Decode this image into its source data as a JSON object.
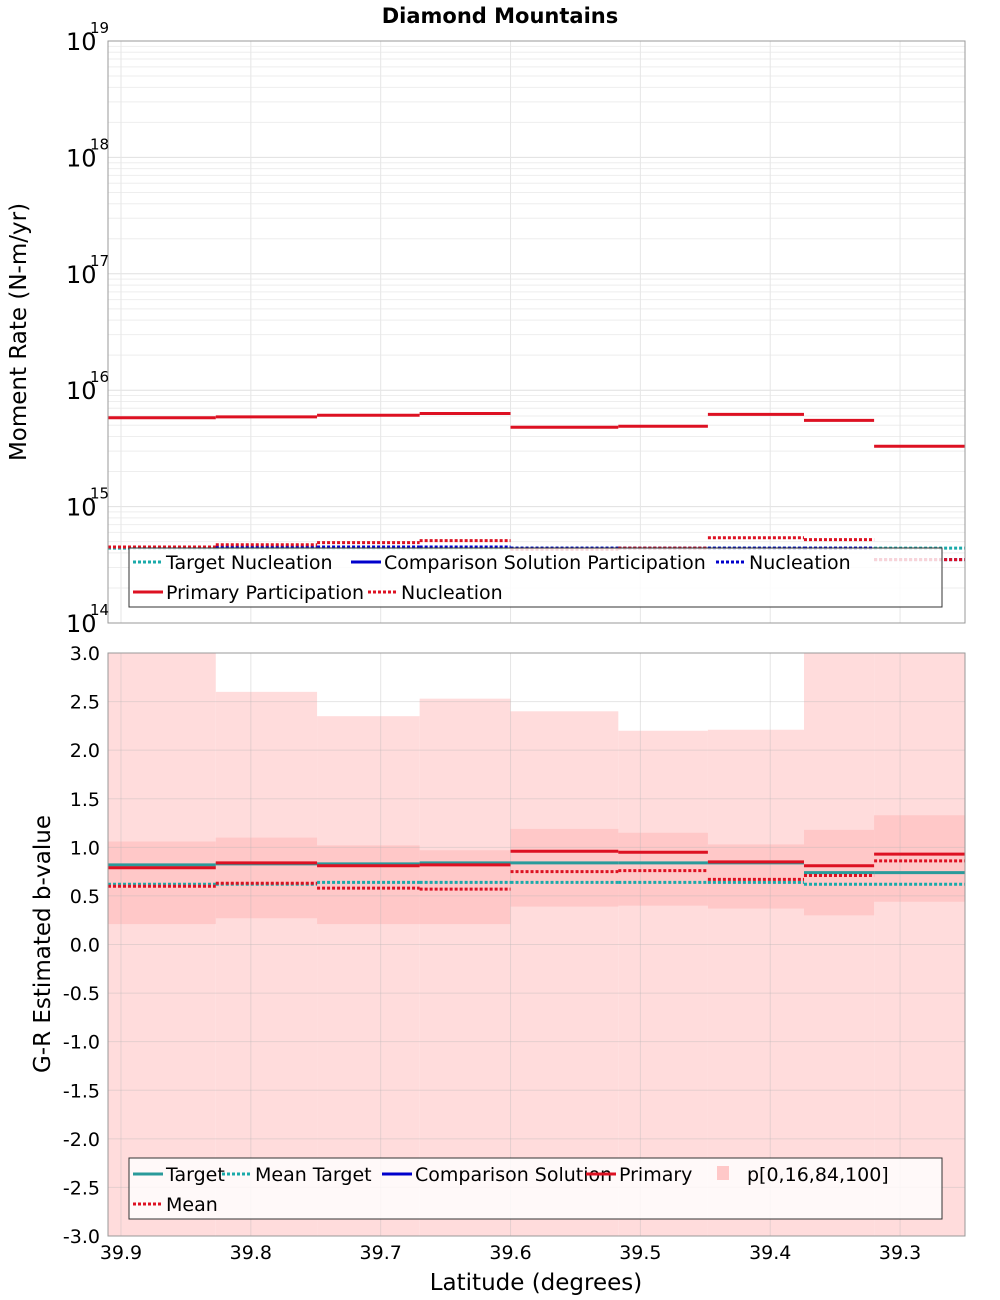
{
  "chart_data": {
    "title": "Diamond Mountains",
    "xlabel": "Latitude (degrees)",
    "x_ticks": [
      "39.9",
      "39.8",
      "39.7",
      "39.6",
      "39.5",
      "39.4",
      "39.3"
    ],
    "x_tick_values": [
      39.9,
      39.8,
      39.7,
      39.6,
      39.5,
      39.4,
      39.3
    ],
    "xlim": [
      39.91,
      39.25
    ],
    "bins": [
      [
        39.91,
        39.827
      ],
      [
        39.827,
        39.749
      ],
      [
        39.749,
        39.67
      ],
      [
        39.67,
        39.6
      ],
      [
        39.6,
        39.517
      ],
      [
        39.517,
        39.448
      ],
      [
        39.448,
        39.374
      ],
      [
        39.374,
        39.32
      ],
      [
        39.32,
        39.25
      ]
    ],
    "charts": [
      {
        "id": "moment-rate",
        "type": "line",
        "scale": "log",
        "ylabel": "Moment Rate (N-m/yr)",
        "ylim": [
          100000000000000.0,
          1e+19
        ],
        "y_tick_base": "10",
        "y_tick_exponents": [
          "14",
          "15",
          "16",
          "17",
          "18",
          "19"
        ],
        "grid": true,
        "legend": {
          "placement": "bottom-left",
          "rows": [
            [
              {
                "label": "Target Nucleation",
                "color": "#1aaaaa",
                "style": "dotted"
              },
              {
                "label": "Comparison Solution Participation",
                "color": "#0000cc",
                "style": "solid"
              },
              {
                "label": "Nucleation",
                "color": "#0000cc",
                "style": "dotted"
              }
            ],
            [
              {
                "label": "Primary Participation",
                "color": "#dd1122",
                "style": "solid"
              },
              {
                "label": "Nucleation",
                "color": "#dd1122",
                "style": "dotted"
              }
            ]
          ]
        },
        "series": [
          {
            "name": "Target Nucleation",
            "color": "#1aaaaa",
            "style": "dotted",
            "values": [
              440000000000000.0,
              440000000000000.0,
              440000000000000.0,
              440000000000000.0,
              440000000000000.0,
              440000000000000.0,
              440000000000000.0,
              440000000000000.0,
              440000000000000.0
            ]
          },
          {
            "name": "Nucleation",
            "color": "#0000cc",
            "style": "dotted",
            "values": [
              450000000000000.0,
              450000000000000.0,
              450000000000000.0,
              450000000000000.0,
              440000000000000.0,
              440000000000000.0,
              440000000000000.0,
              440000000000000.0,
              350000000000000.0
            ]
          },
          {
            "name": "Primary Participation",
            "color": "#dd1122",
            "style": "solid",
            "values": [
              5800000000000000.0,
              5900000000000000.0,
              6100000000000000.0,
              6300000000000000.0,
              4800000000000000.0,
              4900000000000000.0,
              6200000000000000.0,
              5500000000000000.0,
              3300000000000000.0
            ]
          },
          {
            "name": "Nucleation",
            "color": "#dd1122",
            "style": "dotted",
            "values": [
              450000000000000.0,
              470000000000000.0,
              490000000000000.0,
              510000000000000.0,
              430000000000000.0,
              440000000000000.0,
              540000000000000.0,
              520000000000000.0,
              350000000000000.0
            ]
          }
        ]
      },
      {
        "id": "b-value",
        "type": "line",
        "scale": "linear",
        "ylabel": "G-R Estimated b-value",
        "ylim": [
          -3.0,
          3.0
        ],
        "y_ticks": [
          "3.0",
          "2.5",
          "2.0",
          "1.5",
          "1.0",
          "0.5",
          "0.0",
          "-0.5",
          "-1.0",
          "-1.5",
          "-2.0",
          "-2.5",
          "-3.0"
        ],
        "y_tick_values": [
          3.0,
          2.5,
          2.0,
          1.5,
          1.0,
          0.5,
          0.0,
          -0.5,
          -1.0,
          -1.5,
          -2.0,
          -2.5,
          -3.0
        ],
        "grid": true,
        "legend": {
          "placement": "bottom-left",
          "rows": [
            [
              {
                "label": "Target",
                "color": "#2a9a9a",
                "style": "solid"
              },
              {
                "label": "Mean Target",
                "color": "#1aaaaa",
                "style": "dotted"
              },
              {
                "label": "Comparison Solution",
                "color": "#0000cc",
                "style": "solid"
              },
              {
                "label": "Primary",
                "color": "#dd1122",
                "style": "solid"
              },
              {
                "label": "p[0,16,84,100]",
                "color": "#ffc8c8",
                "style": "box"
              }
            ],
            [
              {
                "label": "Mean",
                "color": "#dd1122",
                "style": "dotted"
              }
            ]
          ]
        },
        "band_outer": {
          "name": "p[0,100]",
          "color": "#ffdcdc",
          "lower": [
            -3.0,
            -3.0,
            -3.0,
            -3.0,
            -3.0,
            -3.0,
            -3.0,
            -3.0,
            -3.0
          ],
          "upper": [
            3.0,
            2.6,
            2.35,
            2.53,
            2.4,
            2.2,
            2.21,
            3.0,
            3.0
          ]
        },
        "band_inner": {
          "name": "p[16,84]",
          "color": "#ffc8c8",
          "lower": [
            0.21,
            0.27,
            0.21,
            0.21,
            0.39,
            0.4,
            0.37,
            0.3,
            0.44
          ],
          "upper": [
            1.06,
            1.1,
            1.02,
            0.97,
            1.19,
            1.15,
            1.03,
            1.18,
            1.33
          ]
        },
        "series": [
          {
            "name": "Target",
            "color": "#2a9a9a",
            "style": "solid",
            "values": [
              0.82,
              0.83,
              0.83,
              0.84,
              0.84,
              0.84,
              0.84,
              0.74,
              0.74
            ]
          },
          {
            "name": "Mean Target",
            "color": "#1aaaaa",
            "style": "dotted",
            "values": [
              0.62,
              0.62,
              0.64,
              0.64,
              0.64,
              0.64,
              0.64,
              0.62,
              0.62
            ]
          },
          {
            "name": "Primary",
            "color": "#dd1122",
            "style": "solid",
            "values": [
              0.79,
              0.84,
              0.81,
              0.82,
              0.96,
              0.95,
              0.85,
              0.81,
              0.93
            ]
          },
          {
            "name": "Mean",
            "color": "#dd1122",
            "style": "dotted",
            "values": [
              0.6,
              0.63,
              0.58,
              0.57,
              0.75,
              0.76,
              0.67,
              0.71,
              0.86
            ]
          }
        ]
      }
    ]
  }
}
